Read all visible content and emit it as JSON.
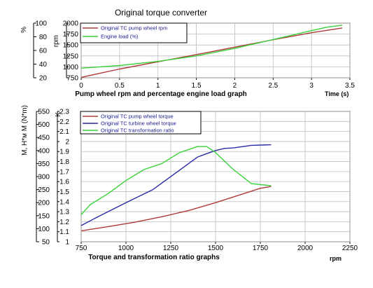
{
  "page": {
    "title": "Original torque converter"
  },
  "colors": {
    "red": "#b03a3a",
    "green": "#3ad23a",
    "blue": "#2a2aa8",
    "grid": "#bdbdbd",
    "border": "#000000"
  },
  "chart_data": [
    {
      "type": "line",
      "xlabel": "Pump wheel rpm and percentage engine load graph",
      "xunit": "Time (s)",
      "xlim": [
        0,
        3.5
      ],
      "xticks": [
        "0",
        "0.5",
        "1",
        "1.5",
        "2",
        "2.5",
        "3",
        "3.5"
      ],
      "grid": true,
      "legend": "top-left",
      "axes": {
        "left": {
          "label": "%",
          "ylim": [
            20,
            100
          ],
          "ticks": [
            "20",
            "40",
            "60",
            "80",
            "100"
          ]
        },
        "right": {
          "label": "rpm",
          "ylim": [
            750,
            2000
          ],
          "ticks": [
            "750",
            "1000",
            "1250",
            "1500",
            "1750",
            "2000"
          ]
        }
      },
      "series": [
        {
          "name": "Original TC pump wheel rpm",
          "color": "red",
          "axis": "right",
          "x": [
            0,
            0.5,
            1,
            1.5,
            2,
            2.5,
            3,
            3.4
          ],
          "y": [
            760,
            950,
            1115,
            1280,
            1450,
            1620,
            1780,
            1890
          ]
        },
        {
          "name": "Engine load (%)",
          "color": "green",
          "axis": "left",
          "x": [
            0,
            0.5,
            1,
            1.5,
            2,
            2.5,
            3,
            3.2,
            3.4
          ],
          "y": [
            34,
            38,
            44,
            52,
            63,
            76,
            89,
            94,
            97
          ]
        }
      ]
    },
    {
      "type": "line",
      "xlabel": "Torque and transformation ratio graphs",
      "xunit": "rpm",
      "xlim": [
        750,
        2250
      ],
      "xticks": [
        "750",
        "1000",
        "1250",
        "1500",
        "1750",
        "2000",
        "2250"
      ],
      "grid": true,
      "legend": "top-left",
      "axes": {
        "left": {
          "label": "M, H*м M (N*m)",
          "ylim": [
            50,
            550
          ],
          "ticks": [
            "50",
            "100",
            "150",
            "200",
            "250",
            "300",
            "350",
            "400",
            "450",
            "500",
            "550"
          ]
        },
        "right": {
          "label": "K",
          "ylim": [
            1,
            2.3
          ],
          "ticks": [
            "1",
            "1.1",
            "1.2",
            "1.3",
            "1.4",
            "1.5",
            "1.6",
            "1.7",
            "1.8",
            "1.9",
            "2",
            "2.1",
            "2.2",
            "2.3"
          ]
        }
      },
      "series": [
        {
          "name": "Original TC pump wheel torque",
          "color": "red",
          "axis": "left",
          "x": [
            750,
            900,
            1050,
            1200,
            1350,
            1500,
            1650,
            1750,
            1810
          ],
          "y": [
            92,
            108,
            125,
            146,
            170,
            200,
            233,
            255,
            262
          ]
        },
        {
          "name": "Original TC turbine wheel torque",
          "color": "blue",
          "axis": "left",
          "x": [
            750,
            850,
            1000,
            1150,
            1300,
            1400,
            1450,
            1500,
            1550,
            1600,
            1700,
            1810
          ],
          "y": [
            112,
            148,
            200,
            250,
            325,
            375,
            388,
            400,
            408,
            410,
            420,
            422
          ]
        },
        {
          "name": "Original TC transformation ratio",
          "color": "green",
          "axis": "right",
          "x": [
            750,
            800,
            900,
            1000,
            1100,
            1200,
            1300,
            1400,
            1450,
            1500,
            1600,
            1700,
            1750,
            1810
          ],
          "y": [
            1.27,
            1.37,
            1.48,
            1.61,
            1.72,
            1.78,
            1.89,
            1.95,
            1.95,
            1.89,
            1.72,
            1.58,
            1.57,
            1.56
          ]
        }
      ]
    }
  ]
}
